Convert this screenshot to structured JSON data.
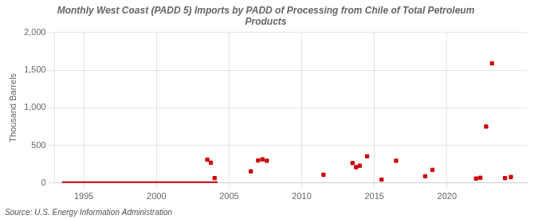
{
  "chart_data": {
    "type": "scatter",
    "title": "Monthly West Coast (PADD 5) Imports by PADD of Processing from Chile of Total Petroleum\nProducts",
    "ylabel": "Thousand Barrels",
    "annotations": [
      "Source: U.S. Energy Information Administration"
    ],
    "series": [
      {
        "type": "scatter",
        "color": "#cc0000",
        "marker": "square",
        "x": [
          2003.5,
          2003.75,
          2004.0,
          2006.5,
          2007.0,
          2007.3,
          2007.6,
          2011.5,
          2013.5,
          2013.75,
          2014.0,
          2014.5,
          2015.5,
          2016.5,
          2018.5,
          2019.0,
          2022.0,
          2022.3,
          2022.7,
          2023.1,
          2024.0,
          2024.4
        ],
        "values": [
          310,
          270,
          65,
          155,
          300,
          315,
          295,
          110,
          265,
          210,
          230,
          355,
          45,
          295,
          90,
          175,
          60,
          70,
          750,
          1590,
          65,
          80
        ]
      },
      {
        "type": "line",
        "color": "#cc0000",
        "line_style": "solid",
        "x": [
          1993.5,
          2004.2
        ],
        "values": [
          0,
          0
        ]
      }
    ],
    "xlim": [
      1993.0,
      2025.5
    ],
    "ylim": [
      0,
      2000
    ],
    "xticks": [
      1995,
      2000,
      2005,
      2010,
      2015,
      2020
    ],
    "yticks": [
      0,
      500,
      {
        "value": 1000,
        "label": "1,000"
      },
      {
        "value": 1500,
        "label": "1,500"
      },
      {
        "value": 2000,
        "label": "2,000"
      }
    ],
    "grid": true
  }
}
